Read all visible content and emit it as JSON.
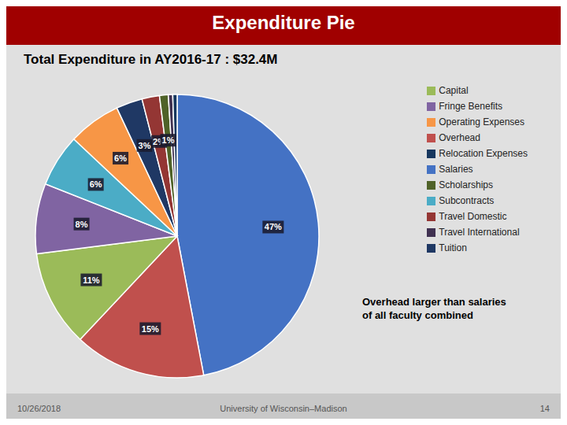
{
  "chart_data": {
    "type": "pie",
    "title": "Expenditure Pie",
    "subtitle": "Total Expenditure in AY2016-17 : $32.4M",
    "annotation": "Overhead larger than salaries\nof all faculty combined",
    "footer": [
      "10/26/2018",
      "University of Wisconsin–Madison",
      "14"
    ],
    "categories": [
      "Salaries",
      "Overhead",
      "Capital",
      "Fringe Benefits",
      "Subcontracts",
      "Operating Expenses",
      "Tuition",
      "Travel Domestic",
      "Scholarships",
      "Travel International",
      "Relocation Expenses"
    ],
    "values": [
      47,
      15,
      11,
      8,
      6,
      6,
      3,
      2,
      1,
      0.5,
      0.5
    ],
    "value_labels": [
      "47%",
      "15%",
      "11%",
      "8%",
      "6%",
      "6%",
      "3%",
      "2%",
      "1%",
      null,
      null
    ],
    "colors": [
      "#4472C4",
      "#C0504D",
      "#9BBB59",
      "#8064A2",
      "#4BACC6",
      "#F79646",
      "#1F3864",
      "#943634",
      "#4F6228",
      "#403151",
      "#17375E"
    ],
    "data_labels": true,
    "legend": "right"
  }
}
